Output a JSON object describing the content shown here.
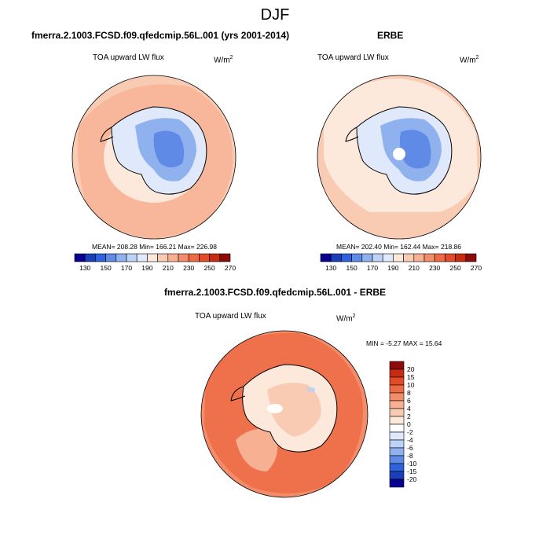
{
  "main_title": "DJF",
  "panels": {
    "model": {
      "title": "fmerra.2.1003.FCSD.f09.qfedcmip.56L.001 (yrs 2001-2014)",
      "var_label": "TOA upward LW flux",
      "units": "W/m",
      "units_exp": "2",
      "stats": "MEAN= 208.28  Min= 166.21  Max= 226.98"
    },
    "obs": {
      "title": "ERBE",
      "var_label": "TOA upward LW flux",
      "units": "W/m",
      "units_exp": "2",
      "stats": "MEAN= 202.40  Min= 162.44  Max= 218.86"
    },
    "diff": {
      "title": "fmerra.2.1003.FCSD.f09.qfedcmip.56L.001 - ERBE",
      "var_label": "TOA upward LW flux",
      "units": "W/m",
      "units_exp": "2",
      "stats": "MIN = -5.27 MAX = 15.64"
    }
  },
  "abs_colorbar": {
    "labels": [
      "130",
      "150",
      "170",
      "190",
      "210",
      "230",
      "250",
      "270"
    ],
    "colors": [
      "#08008f",
      "#1a3fb8",
      "#2f62dc",
      "#5f8ae6",
      "#8fb1ee",
      "#bcd2f6",
      "#dfe9fb",
      "#fde8dc",
      "#f9cbb3",
      "#f7b092",
      "#f38c6a",
      "#ee6a45",
      "#e34a28",
      "#c72b12",
      "#8c0b0b"
    ]
  },
  "diff_colorbar": {
    "labels": [
      "20",
      "15",
      "10",
      "8",
      "6",
      "4",
      "2",
      "0",
      "-2",
      "-4",
      "-6",
      "-8",
      "-10",
      "-15",
      "-20"
    ],
    "colors": [
      "#8c0b0b",
      "#c72b12",
      "#e34a28",
      "#ee6a45",
      "#f38c6a",
      "#f7b092",
      "#f9cbb3",
      "#fde8dc",
      "#ffffff",
      "#dfe9fb",
      "#bcd2f6",
      "#8fb1ee",
      "#5f8ae6",
      "#2f62dc",
      "#1a3fb8",
      "#08008f"
    ]
  }
}
